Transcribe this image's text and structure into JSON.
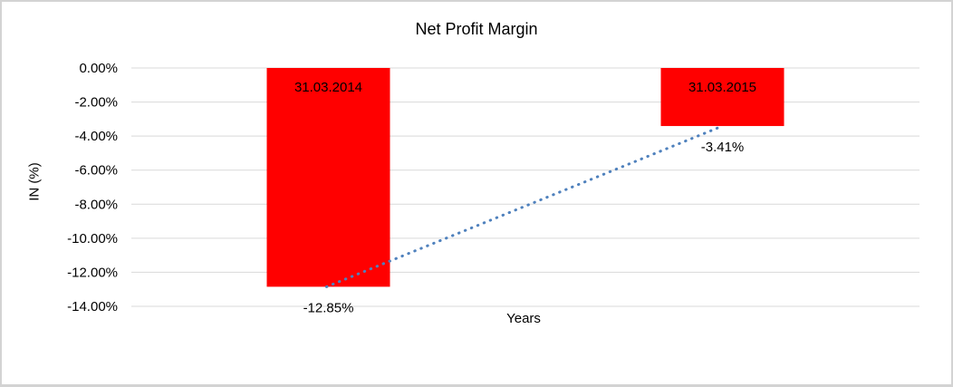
{
  "chart_data": {
    "type": "bar",
    "title": "Net Profit Margin",
    "xlabel": "Years",
    "ylabel": "IN (%)",
    "categories": [
      "31.03.2014",
      "31.03.2015"
    ],
    "values": [
      -12.85,
      -3.41
    ],
    "value_labels": [
      "-12.85%",
      "-3.41%"
    ],
    "ytick_labels": [
      "0.00%",
      "-2.00%",
      "-4.00%",
      "-6.00%",
      "-8.00%",
      "-10.00%",
      "-12.00%",
      "-14.00%"
    ],
    "ytick_step": 2,
    "ylim": [
      -14,
      0
    ],
    "grid": true,
    "legend": "none",
    "colors": {
      "bar": "#ff0000",
      "gridline": "#d9d9d9",
      "trendline": "#4f81bd",
      "text": "#000000",
      "canvas_border": "#d3d3d3",
      "background": "#ffffff"
    },
    "trendline": {
      "type": "linear",
      "style": "dotted",
      "connects": "bar bottoms from -12.85% to -3.41%"
    }
  }
}
